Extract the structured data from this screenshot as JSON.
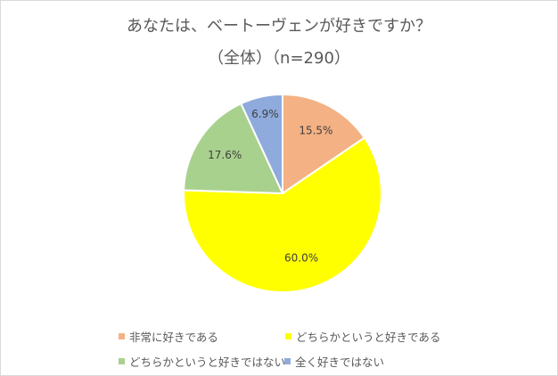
{
  "title": {
    "line1": "あなたは、ベートーヴェンが好きですか？",
    "line2": "（全体）（n=290）"
  },
  "chart_data": {
    "type": "pie",
    "title": "あなたは、ベートーヴェンが好きですか？（全体）（n=290）",
    "categories": [
      "非常に好きである",
      "どちらかというと好きである",
      "どちらかというと好きではない",
      "全く好きではない"
    ],
    "values": [
      15.5,
      60.0,
      17.6,
      6.9
    ],
    "labels": [
      "15.5%",
      "60.0%",
      "17.6%",
      "6.9%"
    ],
    "colors": [
      "#f4b183",
      "#ffff00",
      "#a9d18e",
      "#8faadc"
    ],
    "start_angle_deg": 0,
    "direction": "clockwise",
    "legend_position": "bottom"
  },
  "legend": [
    {
      "label": "非常に好きである",
      "color": "#f4b183"
    },
    {
      "label": "どちらかというと好きである",
      "color": "#ffff00"
    },
    {
      "label": "どちらかというと好きではない",
      "color": "#a9d18e"
    },
    {
      "label": "全く好きではない",
      "color": "#8faadc"
    }
  ]
}
